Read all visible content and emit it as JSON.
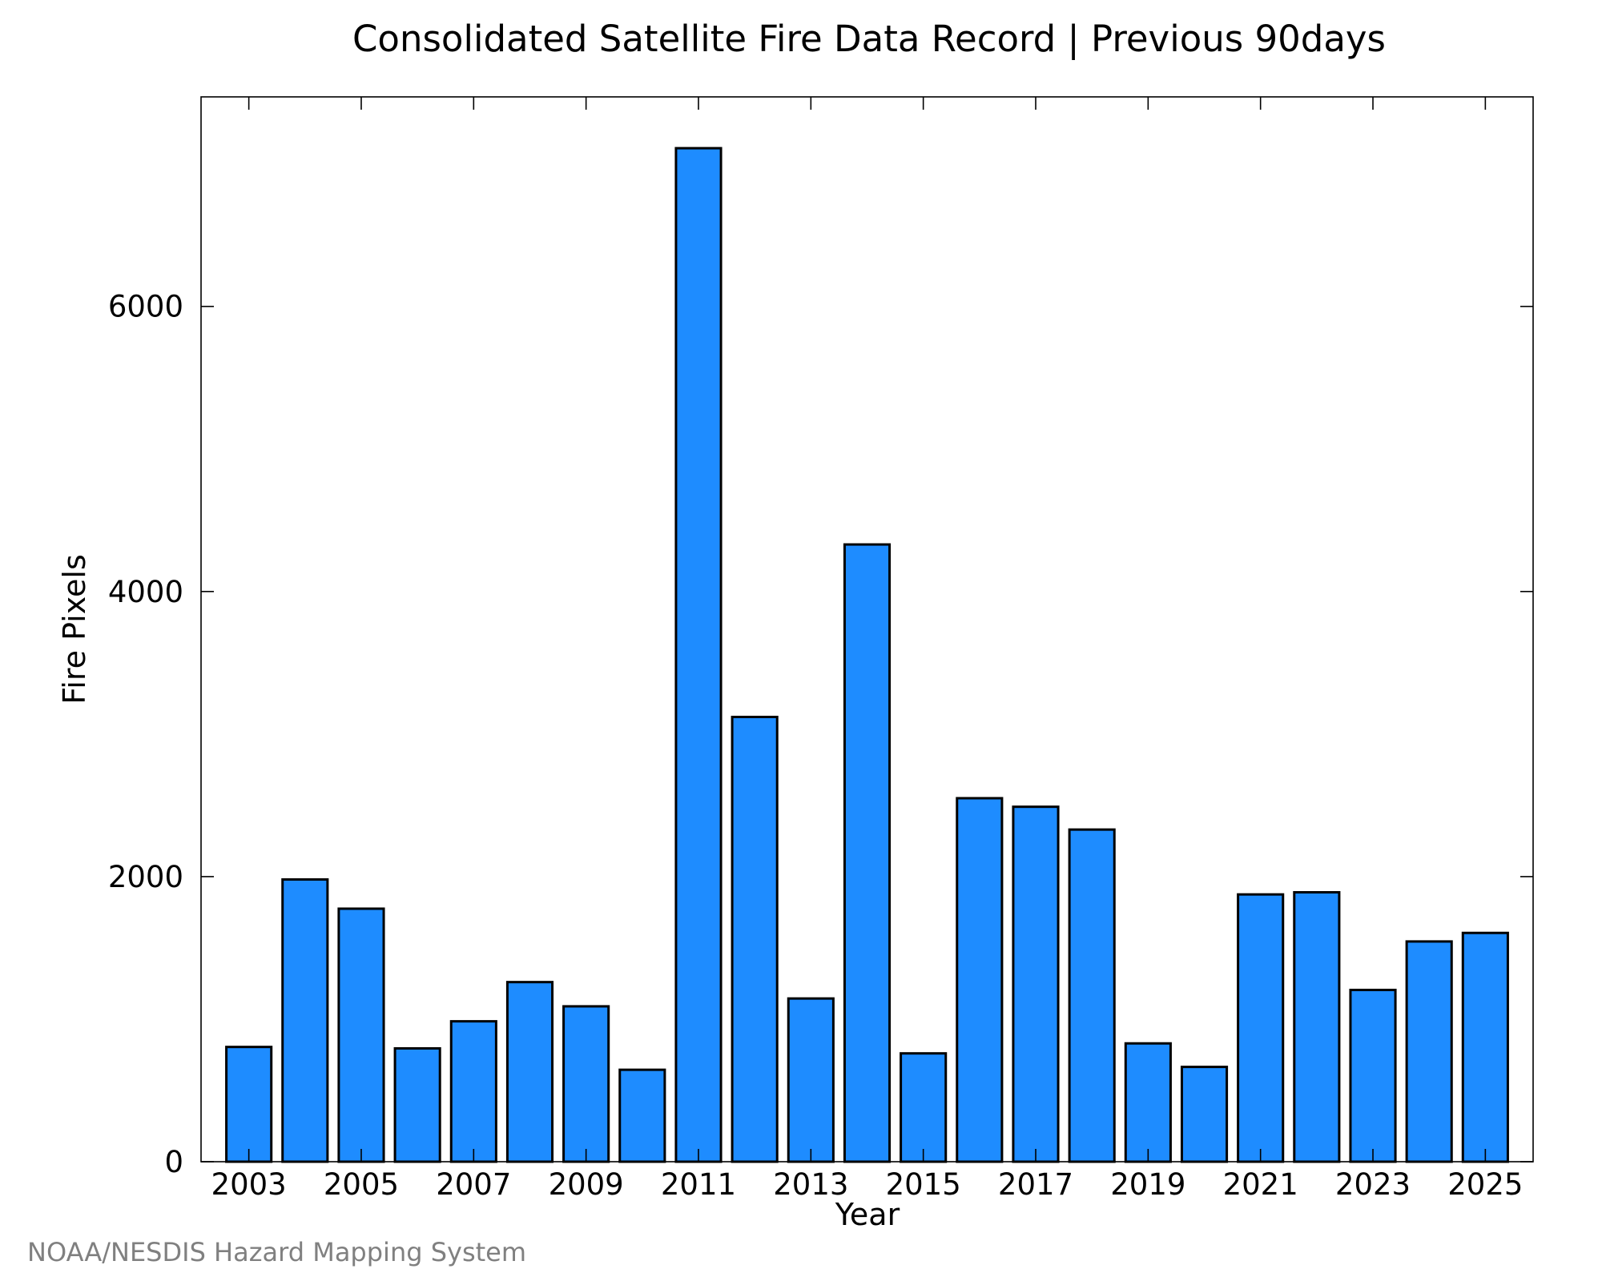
{
  "chart_data": {
    "type": "bar",
    "title": "Consolidated Satellite Fire Data Record | Previous 90days",
    "xlabel": "Year",
    "ylabel": "Fire Pixels",
    "categories": [
      2003,
      2004,
      2005,
      2006,
      2007,
      2008,
      2009,
      2010,
      2011,
      2012,
      2013,
      2014,
      2015,
      2016,
      2017,
      2018,
      2019,
      2020,
      2021,
      2022,
      2023,
      2024,
      2025
    ],
    "values": [
      805,
      1980,
      1775,
      795,
      985,
      1260,
      1090,
      645,
      7110,
      3120,
      1145,
      4330,
      760,
      2550,
      2490,
      2330,
      830,
      665,
      1875,
      1890,
      1205,
      1545,
      1605
    ],
    "x_ticks": [
      "2003",
      "2005",
      "2007",
      "2009",
      "2011",
      "2013",
      "2015",
      "2017",
      "2019",
      "2021",
      "2023",
      "2025"
    ],
    "y_ticks": [
      "0",
      "2000",
      "4000",
      "6000"
    ],
    "y_tick_values": [
      0,
      2000,
      4000,
      6000
    ],
    "ylim": [
      0,
      7470
    ],
    "xlim": [
      2002.15,
      2025.85
    ],
    "bar_color": "#1e8cff",
    "bar_edge_color": "#000000",
    "grid": false,
    "legend": "none",
    "credit": "NOAA/NESDIS Hazard Mapping System"
  }
}
